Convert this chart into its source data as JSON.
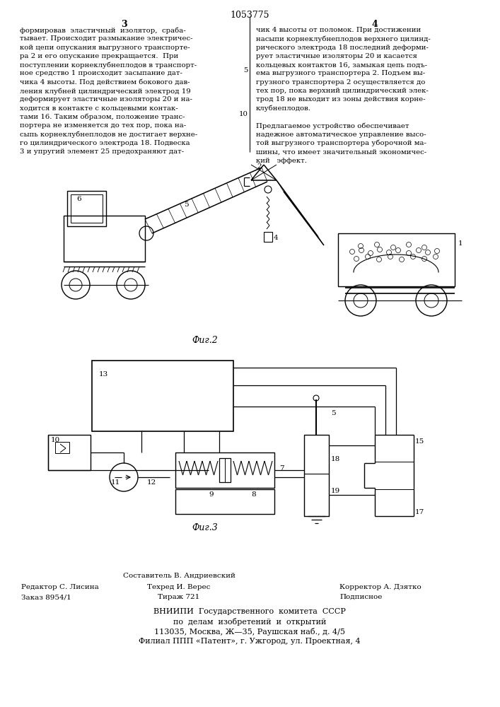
{
  "patent_number": "1053775",
  "page_left": "3",
  "page_right": "4",
  "col_left_text": [
    "формировав  эластичный  изолятор,  сраба-",
    "тывает. Происходит размыкание электричес-",
    "кой цепи опускания выгрузного транспорте-",
    "ра 2 и его опускание прекращается.  При",
    "поступлении корнеклубнеплодов в транспорт-",
    "ное средство 1 происходит засыпание дат-",
    "чика 4 высоты. Под действием бокового дав-",
    "ления клубней цилиндрический электрод 19",
    "деформирует эластичные изоляторы 20 и на-",
    "ходится в контакте с кольцевыми контак-",
    "тами 16. Таким образом, положение транс-",
    "портера не изменяется до тех пор, пока на-",
    "сыпь корнеклубнеплодов не достигает верхне-",
    "го цилиндрического электрода 18. Подвеска",
    "3 и упругий элемент 25 предохраняют дат-"
  ],
  "col_right_text": [
    "чик 4 высоты от поломок. При достижении",
    "насыпи корнеклубнеплодов верхнего цилинд-",
    "рического электрода 18 последний деформи-",
    "рует эластичные изоляторы 20 и касается",
    "кольцевых контактов 16, замыкая цепь подъ-",
    "ема выгрузного транспортера 2. Подъем вы-",
    "грузного транспортера 2 осуществляется до",
    "тех пор, пока верхний цилиндрический элек-",
    "трод 18 не выходит из зоны действия корне-",
    "клубнеплодов."
  ],
  "col_right_text2": [
    "Предлагаемое устройство обеспечивает",
    "надежное автоматическое управление высо-",
    "той выгрузного транспортера уборочной ма-",
    "шины, что имеет значительный экономичес-",
    "кий   эффект."
  ],
  "fig2_label": "Фиг.2",
  "fig3_label": "Фиг.3",
  "footer_line0_center": "Составитель В. Андриевский",
  "footer_line1_left": "Редактор С. Лисина",
  "footer_line1_center": "Техред И. Верес",
  "footer_line1_right": "Корректор А. Дзятко",
  "footer_line2_left": "Заказ 8954/1",
  "footer_line2_center": "Тираж 721",
  "footer_line2_right": "Подписное",
  "footer_vniipi": "ВНИИПИ  Государственного  комитета  СССР",
  "footer_po_delam": "по  делам  изобретений  и  открытий",
  "footer_address": "113035, Москва, Ж—35, Раушская наб., д. 4/5",
  "footer_filial": "Филиал ППП «Патент», г. Ужгород, ул. Проектная, 4",
  "bg_color": "#ffffff",
  "text_color": "#000000",
  "line_num_10": "10",
  "line_num_5": "5"
}
